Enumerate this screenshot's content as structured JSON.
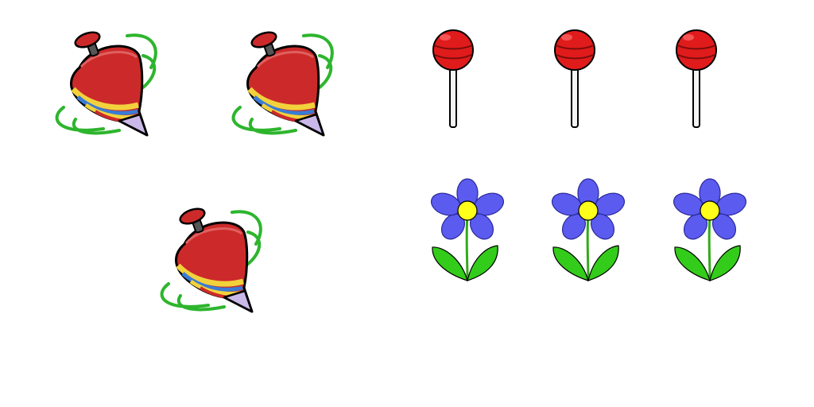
{
  "groups": [
    {
      "name": "spinning-tops",
      "icon": "spinning-top-icon",
      "count": 3
    },
    {
      "name": "lollipops",
      "icon": "lollipop-icon",
      "count": 3
    },
    {
      "name": "flowers",
      "icon": "flower-icon",
      "count": 3
    }
  ],
  "colors": {
    "top_body": "#cc2a2a",
    "top_stripe_yellow": "#f2d23c",
    "top_stripe_blue": "#3a7bd5",
    "top_tip": "#c9b8e8",
    "motion_lines": "#2db52d",
    "lollipop_candy": "#e01b1b",
    "lollipop_stick": "#f4f4f4",
    "flower_petals": "#5b5bf0",
    "flower_center": "#ffff1a",
    "flower_leaves": "#33cc1a"
  }
}
